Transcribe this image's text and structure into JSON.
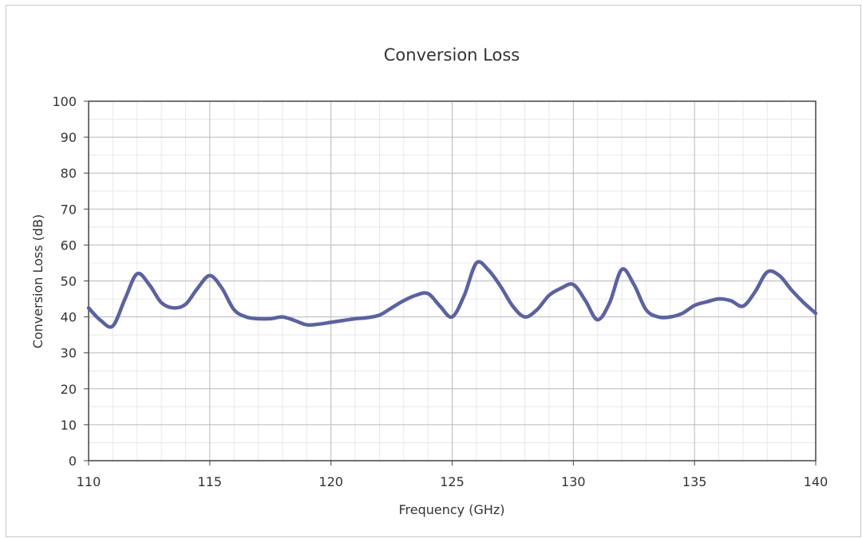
{
  "chart_data": {
    "type": "line",
    "title": "Conversion Loss",
    "xlabel": "Frequency (GHz)",
    "ylabel": "Conversion Loss (dB)",
    "xlim": [
      110,
      140
    ],
    "ylim": [
      0,
      100
    ],
    "x_ticks": [
      110,
      115,
      120,
      125,
      130,
      135,
      140
    ],
    "y_ticks": [
      0,
      10,
      20,
      30,
      40,
      50,
      60,
      70,
      80,
      90,
      100
    ],
    "grid": true,
    "legend": "none",
    "series": [
      {
        "color": "#5b62a0",
        "x": [
          110,
          110.5,
          111,
          111.5,
          112,
          112.5,
          113,
          113.5,
          114,
          114.5,
          115,
          115.5,
          116,
          116.5,
          117,
          117.5,
          118,
          118.5,
          119,
          119.5,
          120,
          120.5,
          121,
          121.5,
          122,
          122.5,
          123,
          123.5,
          124,
          124.5,
          125,
          125.5,
          126,
          126.5,
          127,
          127.5,
          128,
          128.5,
          129,
          129.5,
          130,
          130.5,
          131,
          131.5,
          132,
          132.5,
          133,
          133.5,
          134,
          134.5,
          135,
          135.5,
          136,
          136.5,
          137,
          137.5,
          138,
          138.5,
          139,
          139.5,
          140
        ],
        "y": [
          42.5,
          39,
          37.5,
          45,
          52,
          49,
          44,
          42.5,
          43.5,
          48,
          51.5,
          48,
          42,
          40,
          39.5,
          39.5,
          40,
          39,
          37.8,
          38,
          38.5,
          39,
          39.5,
          39.8,
          40.5,
          42.5,
          44.5,
          46,
          46.5,
          43,
          40,
          46,
          55,
          53,
          48.5,
          43,
          40,
          42,
          46,
          48,
          49,
          44.5,
          39.2,
          44,
          53.2,
          49,
          42,
          40,
          40,
          41,
          43.2,
          44.2,
          45,
          44.5,
          43,
          47,
          52.5,
          51.5,
          47.5,
          44,
          41
        ]
      }
    ]
  }
}
